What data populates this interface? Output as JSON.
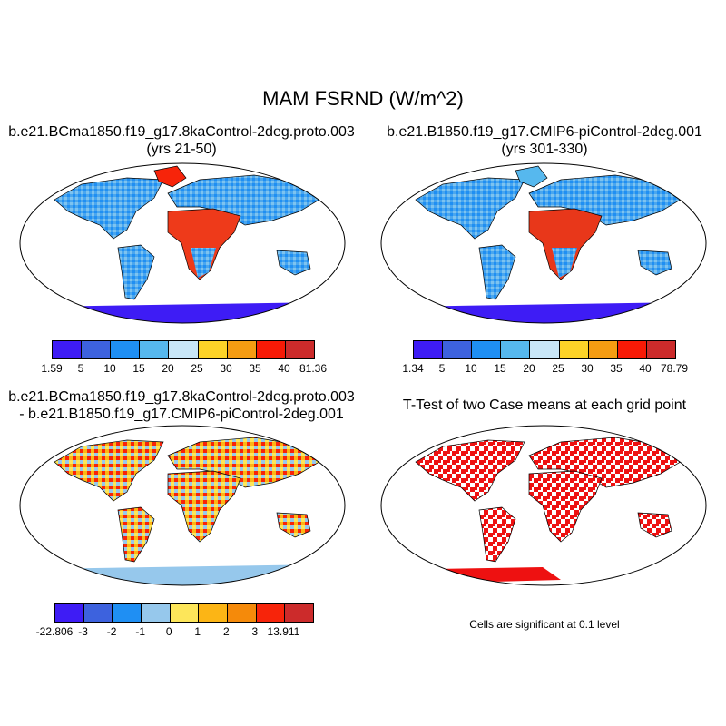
{
  "title": "MAM FSRND (W/m^2)",
  "panels": [
    {
      "title_line1": "b.e21.BCma1850.f19_g17.8kaControl-2deg.proto.003",
      "title_line2": "(yrs 21-50)"
    },
    {
      "title_line1": "b.e21.B1850.f19_g17.CMIP6-piControl-2deg.001",
      "title_line2": "(yrs 301-330)"
    },
    {
      "title_line1": "b.e21.BCma1850.f19_g17.8kaControl-2deg.proto.003",
      "title_line2": "- b.e21.B1850.f19_g17.CMIP6-piControl-2deg.001"
    },
    {
      "title_line1": "T-Test of two Case means at each grid point"
    }
  ],
  "significance_note": "Cells are significant at 0.1 level",
  "colorbars": [
    {
      "labels": [
        "1.59",
        "5",
        "10",
        "15",
        "20",
        "25",
        "30",
        "35",
        "40",
        "81.36"
      ],
      "colors": [
        "#3e1cf5",
        "#3d62de",
        "#1f8ff3",
        "#56b8ee",
        "#c8e6f7",
        "#fcd328",
        "#f59c12",
        "#f71a06",
        "#cc2b2b"
      ]
    },
    {
      "labels": [
        "1.34",
        "5",
        "10",
        "15",
        "20",
        "25",
        "30",
        "35",
        "40",
        "78.79"
      ],
      "colors": [
        "#3e1cf5",
        "#3d62de",
        "#1f8ff3",
        "#56b8ee",
        "#c8e6f7",
        "#fcd328",
        "#f59c12",
        "#f71a06",
        "#cc2b2b"
      ]
    },
    {
      "labels": [
        "-22.806",
        "-3",
        "-2",
        "-1",
        "0",
        "1",
        "2",
        "3",
        "13.911"
      ],
      "colors": [
        "#3e1cf5",
        "#3d62de",
        "#1f8ff3",
        "#96c8ec",
        "#fde65a",
        "#fcb515",
        "#f58a0a",
        "#f7240a",
        "#cc2b2b"
      ]
    }
  ],
  "colors": {
    "ocean": "#ffffff",
    "significant": "#ee1111",
    "coast": "#000000"
  }
}
